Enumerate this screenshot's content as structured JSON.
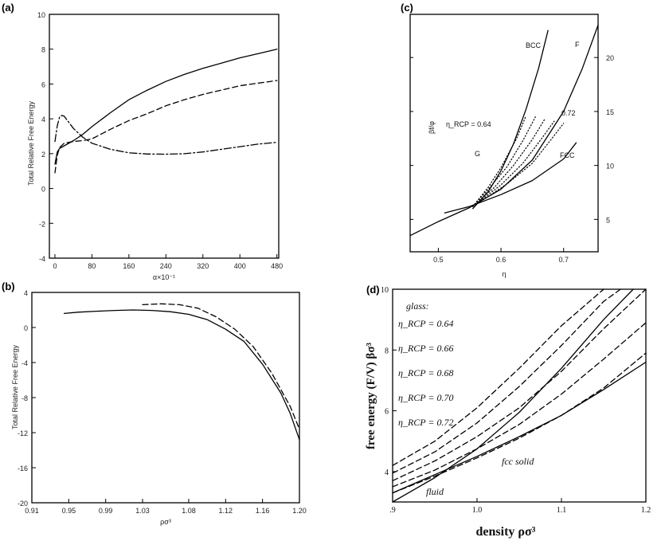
{
  "chart_data": [
    {
      "panel": "(a)",
      "type": "line",
      "xlabel": "α×10⁻¹",
      "ylabel": "Total Relative Free Energy",
      "xlim": [
        -12,
        484
      ],
      "ylim": [
        -4,
        10
      ],
      "xticks": [
        "0",
        "80",
        "160",
        "240",
        "320",
        "400",
        "480"
      ],
      "yticks": [
        "-4",
        "-2",
        "0",
        "2",
        "4",
        "6",
        "8",
        "10"
      ],
      "series": [
        {
          "style": "solid",
          "x": [
            0,
            5,
            10,
            20,
            40,
            60,
            80,
            120,
            160,
            200,
            240,
            280,
            320,
            360,
            400,
            440,
            480
          ],
          "y": [
            1.4,
            2.1,
            2.3,
            2.45,
            2.75,
            3.1,
            3.55,
            4.35,
            5.1,
            5.65,
            6.15,
            6.55,
            6.9,
            7.2,
            7.5,
            7.75,
            8.0
          ]
        },
        {
          "style": "dashed",
          "x": [
            0,
            5,
            10,
            20,
            40,
            60,
            80,
            120,
            160,
            200,
            240,
            280,
            320,
            360,
            400,
            440,
            480
          ],
          "y": [
            0.9,
            1.9,
            2.35,
            2.6,
            2.7,
            2.75,
            2.85,
            3.4,
            3.9,
            4.3,
            4.75,
            5.1,
            5.4,
            5.65,
            5.9,
            6.05,
            6.2
          ]
        },
        {
          "style": "dash-dot",
          "x": [
            0,
            5,
            10,
            15,
            20,
            30,
            40,
            60,
            80,
            120,
            160,
            200,
            240,
            280,
            320,
            360,
            400,
            440,
            480
          ],
          "y": [
            2.7,
            3.6,
            4.1,
            4.2,
            4.15,
            3.8,
            3.45,
            2.95,
            2.6,
            2.25,
            2.05,
            1.98,
            1.97,
            2.0,
            2.1,
            2.25,
            2.4,
            2.55,
            2.65
          ]
        }
      ]
    },
    {
      "panel": "(b)",
      "type": "line",
      "xlabel": "ρσ³",
      "ylabel": "Total Relative Free Energy",
      "xlim": [
        0.91,
        1.2
      ],
      "ylim": [
        -20,
        4
      ],
      "xticks": [
        "0.91",
        "0.95",
        "0.99",
        "1.03",
        "1.08",
        "1.12",
        "1.16",
        "1.20"
      ],
      "yticks": [
        "-20",
        "-16",
        "-12",
        "-8",
        "-4",
        "0",
        "4"
      ],
      "series": [
        {
          "style": "solid",
          "x": [
            0.945,
            0.96,
            0.98,
            1.0,
            1.02,
            1.04,
            1.06,
            1.08,
            1.1,
            1.12,
            1.14,
            1.16,
            1.18,
            1.19,
            1.2
          ],
          "y": [
            1.6,
            1.75,
            1.85,
            1.95,
            2.0,
            1.95,
            1.8,
            1.5,
            0.9,
            -0.2,
            -1.6,
            -4.2,
            -7.5,
            -9.8,
            -12.8
          ]
        },
        {
          "style": "dashed",
          "x": [
            1.03,
            1.05,
            1.07,
            1.09,
            1.11,
            1.13,
            1.15,
            1.17,
            1.19,
            1.2
          ],
          "y": [
            2.6,
            2.7,
            2.6,
            2.2,
            1.2,
            -0.2,
            -2.2,
            -5.2,
            -9.0,
            -11.6
          ]
        }
      ]
    },
    {
      "panel": "(c)",
      "type": "line",
      "xlabel": "η",
      "ylabel": "βf/φ",
      "xlim": [
        0.455,
        0.755
      ],
      "ylim": [
        2,
        24
      ],
      "xticks": [
        "0.5",
        "0.6",
        "0.7"
      ],
      "yticks": [
        "5",
        "10",
        "15",
        "20"
      ],
      "annotations": [
        "BCC",
        "F",
        "η_RCP = 0.64",
        "0.72",
        "G",
        "FCC"
      ],
      "series": [
        {
          "name": "F",
          "style": "solid",
          "x": [
            0.455,
            0.5,
            0.55,
            0.6,
            0.65,
            0.7,
            0.73,
            0.755
          ],
          "y": [
            3.5,
            4.8,
            6.1,
            7.8,
            10.5,
            15.0,
            19.0,
            23.0
          ]
        },
        {
          "name": "BCC",
          "style": "solid",
          "x": [
            0.555,
            0.58,
            0.6,
            0.62,
            0.64,
            0.66,
            0.675
          ],
          "y": [
            6.0,
            7.6,
            9.5,
            12.0,
            15.2,
            19.0,
            22.5
          ]
        },
        {
          "name": "FCC",
          "style": "solid",
          "x": [
            0.51,
            0.55,
            0.6,
            0.65,
            0.7,
            0.72
          ],
          "y": [
            5.6,
            6.2,
            7.3,
            8.6,
            10.6,
            12.1
          ]
        },
        {
          "name": "G",
          "style": "dotted",
          "x": [
            0.555,
            0.58,
            0.6,
            0.625,
            0.64
          ],
          "y": [
            6.2,
            8.0,
            9.8,
            12.5,
            14.6
          ]
        },
        {
          "style": "dotted",
          "x": [
            0.555,
            0.58,
            0.61,
            0.635,
            0.655
          ],
          "y": [
            6.2,
            7.8,
            9.9,
            12.3,
            14.5
          ]
        },
        {
          "style": "dotted",
          "x": [
            0.555,
            0.59,
            0.62,
            0.65,
            0.67
          ],
          "y": [
            6.2,
            8.0,
            10.0,
            12.4,
            14.3
          ]
        },
        {
          "style": "dotted",
          "x": [
            0.555,
            0.6,
            0.635,
            0.665,
            0.685
          ],
          "y": [
            6.2,
            8.2,
            10.2,
            12.5,
            14.1
          ]
        },
        {
          "style": "dotted",
          "x": [
            0.555,
            0.61,
            0.65,
            0.68,
            0.7
          ],
          "y": [
            6.2,
            8.3,
            10.2,
            12.4,
            13.9
          ]
        }
      ]
    },
    {
      "panel": "(d)",
      "type": "line",
      "xlabel": "density   ρσ³",
      "ylabel": "free energy  (F/V)  βσ³",
      "xlim": [
        0.9,
        1.2
      ],
      "ylim": [
        3,
        10
      ],
      "xticks": [
        ".9",
        "1.0",
        "1.1",
        "1.2"
      ],
      "yticks": [
        "4",
        "6",
        "8",
        "10"
      ],
      "legend_title": "glass:",
      "legend_entries": [
        "η_RCP = 0.64",
        "η_RCP = 0.66",
        "η_RCP = 0.68",
        "η_RCP = 0.70",
        "η_RCP = 0.72"
      ],
      "annotations": [
        "fcc solid",
        "fluid"
      ],
      "series": [
        {
          "name": "fluid",
          "style": "solid",
          "x": [
            0.9,
            0.95,
            1.0,
            1.05,
            1.1,
            1.15,
            1.185
          ],
          "y": [
            3.0,
            3.8,
            4.75,
            5.95,
            7.4,
            9.0,
            10.0
          ]
        },
        {
          "name": "fcc solid",
          "style": "solid",
          "x": [
            0.9,
            0.95,
            1.0,
            1.05,
            1.1,
            1.15,
            1.2
          ],
          "y": [
            3.3,
            3.9,
            4.5,
            5.15,
            5.85,
            6.7,
            7.6
          ]
        },
        {
          "name": "η_RCP = 0.64",
          "style": "dashed",
          "x": [
            0.9,
            0.95,
            1.0,
            1.05,
            1.1,
            1.15
          ],
          "y": [
            4.2,
            5.0,
            6.1,
            7.4,
            8.8,
            10.0
          ]
        },
        {
          "name": "η_RCP = 0.66",
          "style": "dashed",
          "x": [
            0.9,
            0.95,
            1.0,
            1.05,
            1.1,
            1.15,
            1.17
          ],
          "y": [
            3.95,
            4.65,
            5.6,
            6.8,
            8.15,
            9.6,
            10.0
          ]
        },
        {
          "name": "η_RCP = 0.68",
          "style": "dashed",
          "x": [
            0.9,
            0.95,
            1.0,
            1.05,
            1.1,
            1.15,
            1.2
          ],
          "y": [
            3.7,
            4.35,
            5.15,
            6.1,
            7.3,
            8.7,
            10.0
          ]
        },
        {
          "name": "η_RCP = 0.70",
          "style": "dashed",
          "x": [
            0.9,
            0.95,
            1.0,
            1.05,
            1.1,
            1.15,
            1.2
          ],
          "y": [
            3.5,
            4.05,
            4.75,
            5.55,
            6.55,
            7.7,
            8.9
          ]
        },
        {
          "name": "η_RCP = 0.72",
          "style": "dashed",
          "x": [
            0.9,
            0.95,
            1.0,
            1.05,
            1.1,
            1.15,
            1.2
          ],
          "y": [
            3.3,
            3.85,
            4.45,
            5.1,
            5.85,
            6.75,
            7.9
          ]
        }
      ]
    }
  ]
}
